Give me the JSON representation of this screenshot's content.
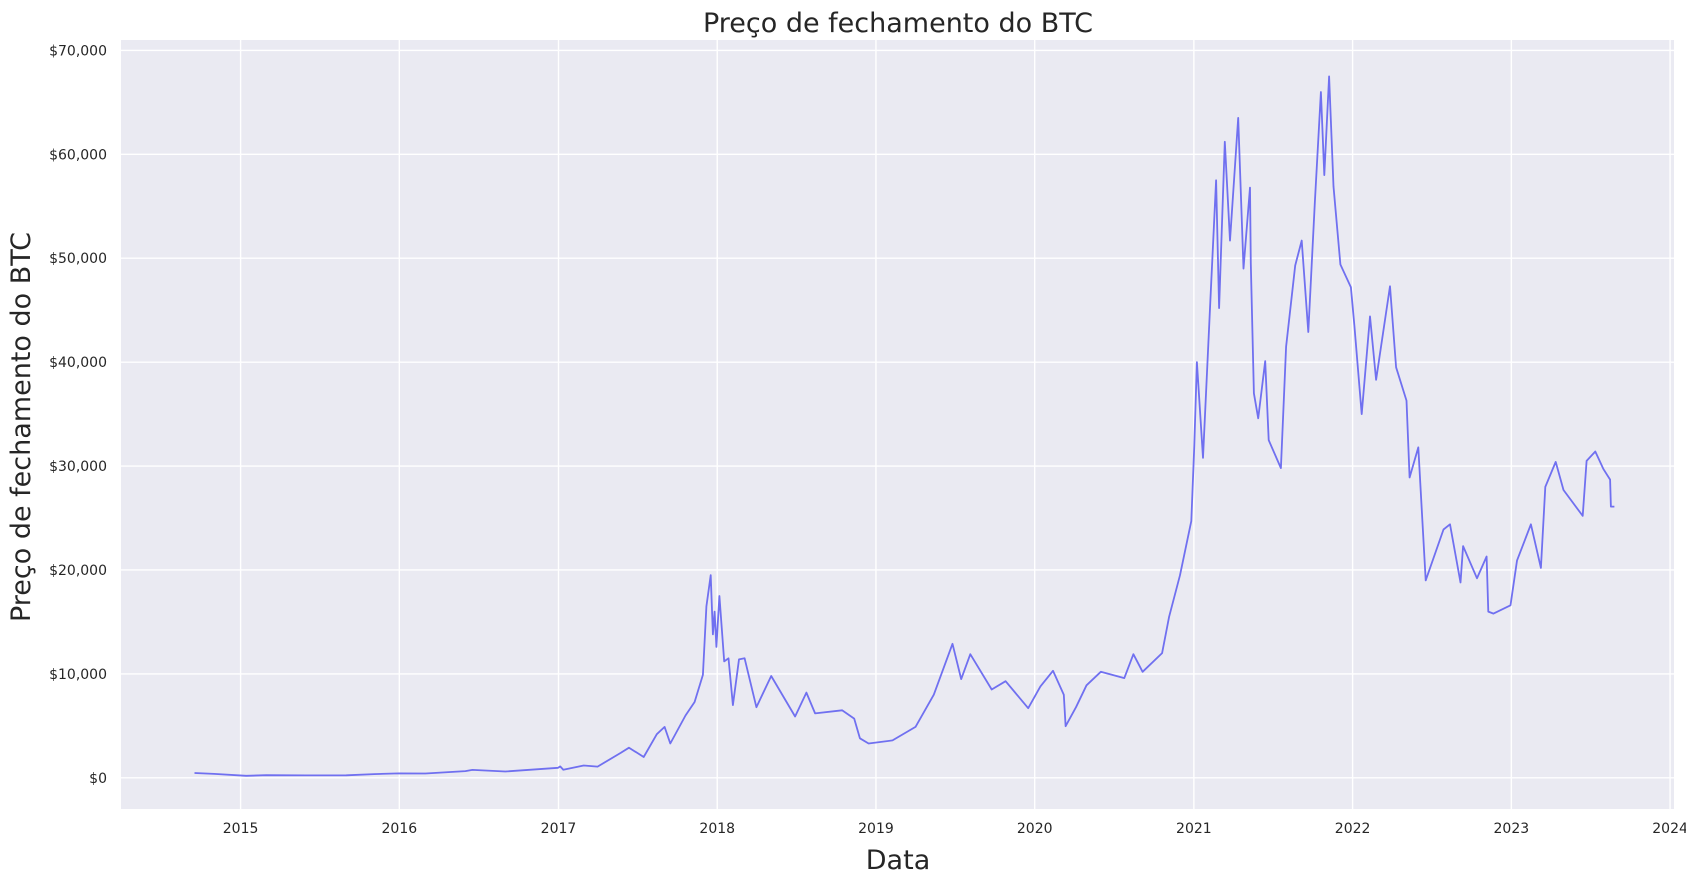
{
  "chart_data": {
    "type": "line",
    "title": "Preço de fechamento do BTC",
    "xlabel": "Data",
    "ylabel": "Preço de fechamento do BTC",
    "xlim": [
      "2014-04-01",
      "2024-01-10"
    ],
    "ylim": [
      -3000,
      71000
    ],
    "xticks": [
      "2015",
      "2016",
      "2017",
      "2018",
      "2019",
      "2020",
      "2021",
      "2022",
      "2023",
      "2024"
    ],
    "yticks": [
      0,
      10000,
      20000,
      30000,
      40000,
      50000,
      60000,
      70000
    ],
    "ytick_labels": [
      "$0",
      "$10,000",
      "$20,000",
      "$30,000",
      "$40,000",
      "$50,000",
      "$60,000",
      "$70,000"
    ],
    "grid": true,
    "colors": {
      "line": "#7070f0",
      "plot_bg": "#eaeaf2",
      "grid": "#ffffff"
    },
    "series": [
      {
        "x": [
          "2014-09-17",
          "2014-11-01",
          "2015-01-14",
          "2015-03-01",
          "2015-06-01",
          "2015-09-01",
          "2015-11-04",
          "2015-12-31",
          "2016-03-01",
          "2016-06-01",
          "2016-06-17",
          "2016-09-01",
          "2016-12-31",
          "2017-01-05",
          "2017-01-12",
          "2017-02-28",
          "2017-04-01",
          "2017-05-24",
          "2017-06-12",
          "2017-07-16",
          "2017-08-15",
          "2017-09-02",
          "2017-09-15",
          "2017-10-20",
          "2017-11-10",
          "2017-11-29",
          "2017-12-07",
          "2017-12-17",
          "2017-12-22",
          "2017-12-26",
          "2017-12-30",
          "2018-01-06",
          "2018-01-17",
          "2018-01-27",
          "2018-02-06",
          "2018-02-20",
          "2018-03-05",
          "2018-04-01",
          "2018-05-05",
          "2018-06-29",
          "2018-07-25",
          "2018-08-14",
          "2018-10-15",
          "2018-11-12",
          "2018-11-25",
          "2018-12-15",
          "2019-02-08",
          "2019-04-02",
          "2019-05-14",
          "2019-06-26",
          "2019-07-16",
          "2019-08-06",
          "2019-09-24",
          "2019-10-26",
          "2019-12-17",
          "2020-01-14",
          "2020-02-12",
          "2020-03-08",
          "2020-03-12",
          "2020-04-05",
          "2020-04-29",
          "2020-06-01",
          "2020-07-25",
          "2020-08-15",
          "2020-09-05",
          "2020-10-20",
          "2020-11-05",
          "2020-11-30",
          "2020-12-26",
          "2021-01-02",
          "2021-01-08",
          "2021-01-22",
          "2021-02-08",
          "2021-02-21",
          "2021-02-28",
          "2021-03-13",
          "2021-03-25",
          "2021-04-13",
          "2021-04-25",
          "2021-05-10",
          "2021-05-12",
          "2021-05-19",
          "2021-05-29",
          "2021-06-14",
          "2021-06-22",
          "2021-07-20",
          "2021-08-01",
          "2021-08-22",
          "2021-09-06",
          "2021-09-21",
          "2021-10-06",
          "2021-10-20",
          "2021-10-28",
          "2021-11-08",
          "2021-11-18",
          "2021-12-04",
          "2021-12-28",
          "2022-01-05",
          "2022-01-22",
          "2022-02-10",
          "2022-02-24",
          "2022-03-28",
          "2022-04-11",
          "2022-05-05",
          "2022-05-12",
          "2022-06-01",
          "2022-06-18",
          "2022-07-29",
          "2022-08-13",
          "2022-09-06",
          "2022-09-12",
          "2022-10-14",
          "2022-11-05",
          "2022-11-09",
          "2022-11-21",
          "2022-12-30",
          "2023-01-14",
          "2023-02-15",
          "2023-03-10",
          "2023-03-20",
          "2023-04-13",
          "2023-05-01",
          "2023-06-14",
          "2023-06-23",
          "2023-07-13",
          "2023-08-01",
          "2023-08-16",
          "2023-08-18",
          "2023-08-26"
        ],
        "y": [
          460,
          380,
          190,
          250,
          230,
          240,
          360,
          430,
          420,
          650,
          760,
          610,
          960,
          1100,
          780,
          1190,
          1080,
          2400,
          2900,
          2000,
          4200,
          4900,
          3300,
          6000,
          7300,
          9900,
          16500,
          19500,
          13800,
          16000,
          12600,
          17500,
          11200,
          11500,
          7000,
          11400,
          11500,
          6800,
          9800,
          5900,
          8200,
          6200,
          6500,
          5700,
          3800,
          3300,
          3600,
          4900,
          8000,
          12900,
          9500,
          11900,
          8500,
          9300,
          6700,
          8800,
          10300,
          8000,
          4970,
          6800,
          8900,
          10200,
          9600,
          11900,
          10200,
          12000,
          15500,
          19500,
          24700,
          32000,
          40000,
          30800,
          46000,
          57500,
          45200,
          61200,
          51700,
          63500,
          49000,
          56800,
          49500,
          37000,
          34600,
          40100,
          32500,
          29800,
          41500,
          49300,
          51700,
          42900,
          55300,
          66000,
          58000,
          67500,
          56900,
          49400,
          47200,
          43500,
          35000,
          44400,
          38300,
          47300,
          39500,
          36300,
          28900,
          31800,
          19000,
          23900,
          24400,
          18800,
          22300,
          19200,
          21300,
          16000,
          15800,
          16600,
          20900,
          24400,
          20200,
          28000,
          30400,
          27700,
          25200,
          30500,
          31400,
          29700,
          28700,
          26100,
          26100
        ]
      }
    ]
  }
}
